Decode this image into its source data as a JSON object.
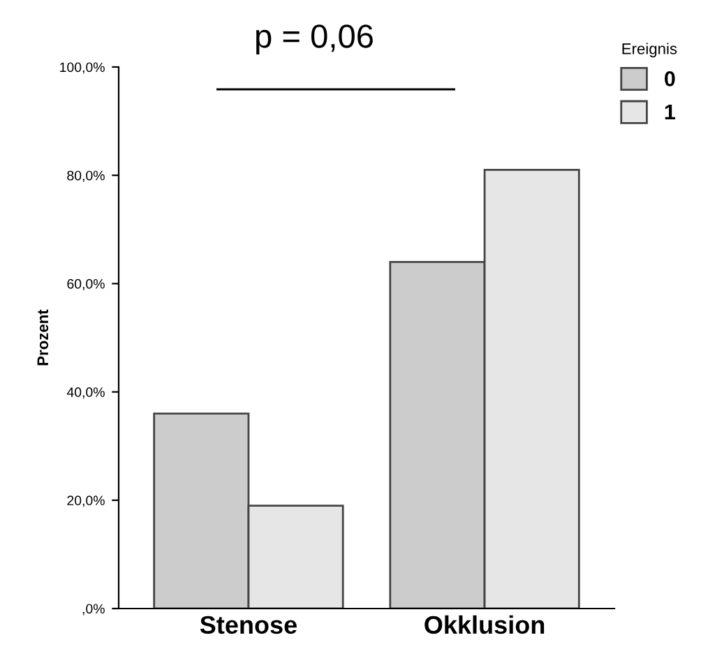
{
  "chart_data": {
    "type": "bar",
    "ylabel": "Prozent",
    "legend_title": "Ereignis",
    "legend": "top right",
    "categories": [
      "Stenose",
      "Okklusion"
    ],
    "series": [
      {
        "name": "0",
        "color": "#cccccc",
        "values": [
          36,
          64
        ]
      },
      {
        "name": "1",
        "color": "#e6e6e6",
        "values": [
          19,
          81
        ]
      }
    ],
    "ylim": [
      0,
      100
    ],
    "yticks": [
      {
        "value": 0,
        "label": ",0%"
      },
      {
        "value": 20,
        "label": "20,0%"
      },
      {
        "value": 40,
        "label": "40,0%"
      },
      {
        "value": 60,
        "label": "60,0%"
      },
      {
        "value": 80,
        "label": "80,0%"
      },
      {
        "value": 100,
        "label": "100,0%"
      }
    ],
    "grid": false,
    "annotations": [
      "p = 0,06"
    ]
  }
}
